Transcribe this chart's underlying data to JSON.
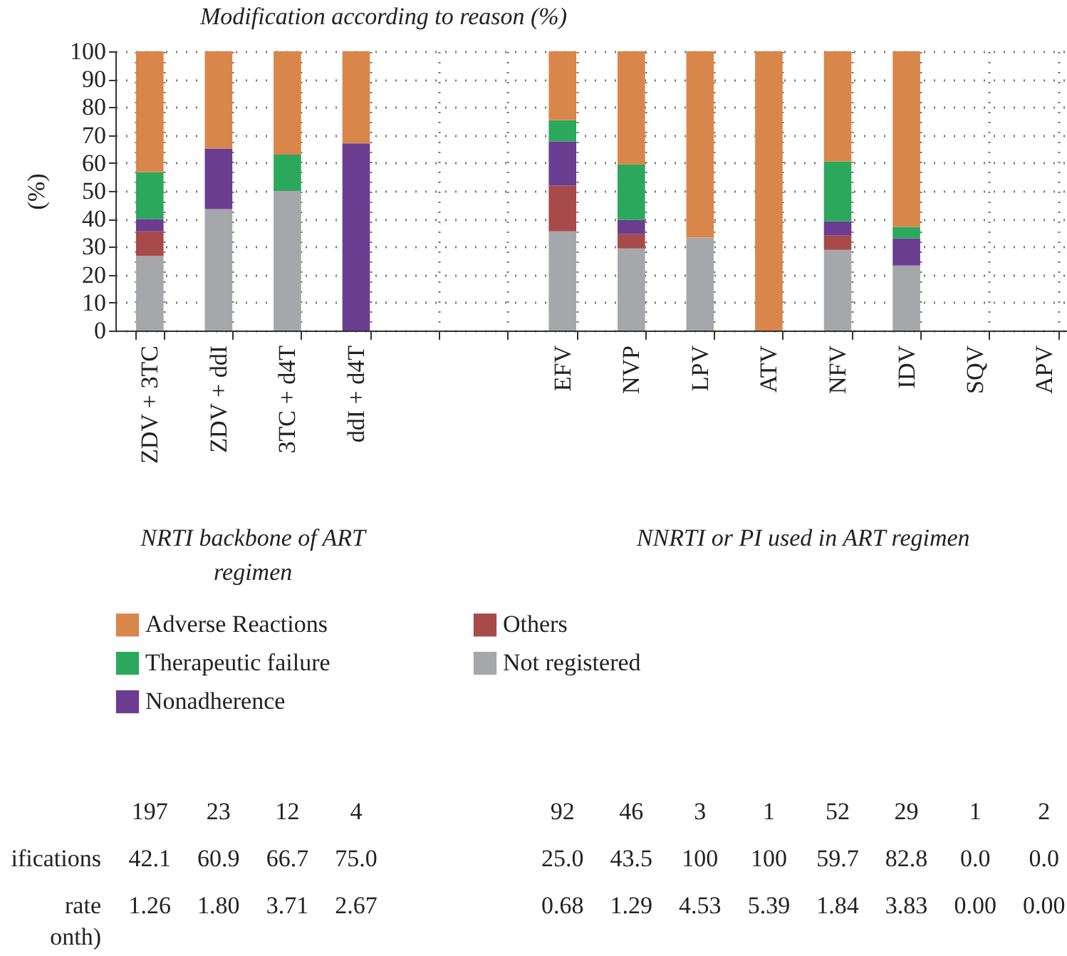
{
  "chart_data": [
    {
      "type": "bar",
      "title": "Modification according to reason (%)",
      "ylabel": "(%)",
      "stacked": true,
      "categories": [
        "ZDV + 3TC",
        "ZDV + ddI",
        "3TC + d4T",
        "ddI + d4T",
        null,
        null,
        "EFV",
        "NVP",
        "LPV",
        "ATV",
        "NFV",
        "IDV",
        "SQV",
        "APV"
      ],
      "series": [
        {
          "name": "Not registered",
          "color": "#a6a7aa",
          "values": [
            26.7,
            43.5,
            50,
            0,
            null,
            null,
            35.5,
            29.4,
            33.3,
            0,
            28.9,
            23.3,
            null,
            null
          ]
        },
        {
          "name": "Others",
          "color": "#a84a4a",
          "values": [
            8.8,
            0,
            0,
            0,
            null,
            null,
            16.4,
            5.1,
            0,
            0,
            5.1,
            0,
            null,
            null
          ]
        },
        {
          "name": "Nonadherence",
          "color": "#6a3d91",
          "values": [
            4.4,
            21.7,
            0,
            67,
            null,
            null,
            15.8,
            5.1,
            0,
            0,
            5.1,
            9.7,
            null,
            null
          ]
        },
        {
          "name": "Therapeutic failure",
          "color": "#2ca85c",
          "values": [
            16.8,
            0,
            13,
            0,
            null,
            null,
            7.6,
            19.9,
            0,
            0,
            21.4,
            4.1,
            null,
            null
          ]
        },
        {
          "name": "Adverse Reactions",
          "color": "#d9864b",
          "values": [
            43.3,
            34.8,
            37,
            33,
            null,
            null,
            24.7,
            40.5,
            66.7,
            100,
            39.5,
            62.9,
            null,
            null
          ]
        }
      ],
      "ylim": [
        0,
        100
      ],
      "yticks": [
        0,
        10,
        20,
        30,
        40,
        50,
        60,
        70,
        80,
        90,
        100
      ],
      "grid": true,
      "legend": "bottom",
      "annotations": [
        "NRTI backbone of ART regimen",
        "NNRTI or PI used in ART regimen"
      ]
    },
    {
      "type": "other",
      "y_categories": [
        null,
        "ifications",
        "rate\nonth)"
      ],
      "cell_labels": [
        [
          "197",
          "23",
          "12",
          "4",
          null,
          null,
          "92",
          "46",
          "3",
          "1",
          "52",
          "29",
          "1",
          "2"
        ],
        [
          "42.1",
          "60.9",
          "66.7",
          "75.0",
          null,
          null,
          "25.0",
          "43.5",
          "100",
          "100",
          "59.7",
          "82.8",
          "0.0",
          "0.0"
        ],
        [
          "1.26",
          "1.80",
          "3.71",
          "2.67",
          null,
          null,
          "0.68",
          "1.29",
          "4.53",
          "5.39",
          "1.84",
          "3.83",
          "0.00",
          "0.00"
        ]
      ]
    }
  ]
}
